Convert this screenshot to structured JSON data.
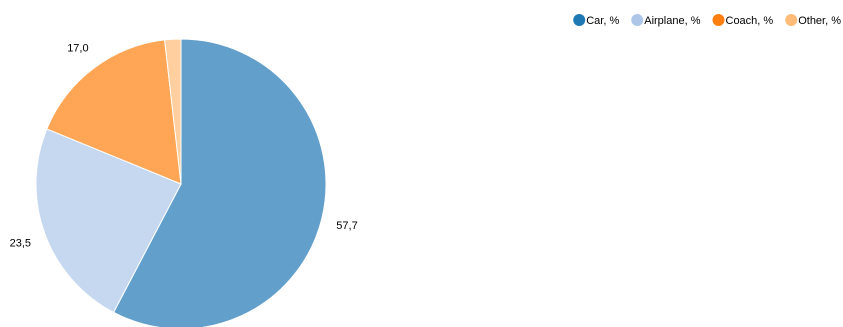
{
  "chart_data": {
    "type": "pie",
    "title": "",
    "series": [
      {
        "name": "Car, %",
        "value": 57.7,
        "label": "57,7",
        "color": "#1f77b4",
        "fill": "#62a0cb"
      },
      {
        "name": "Airplane, %",
        "value": 23.5,
        "label": "23,5",
        "color": "#aec7e8",
        "fill": "#c6d8ef"
      },
      {
        "name": "Coach, %",
        "value": 17.0,
        "label": "17,0",
        "color": "#ff7f0e",
        "fill": "#ffa556"
      },
      {
        "name": "Other, %",
        "value": 1.8,
        "label": "",
        "color": "#ffbb78",
        "fill": "#ffcfa0"
      }
    ],
    "legend_position": "top-right",
    "start_angle_deg": 0,
    "direction": "clockwise"
  }
}
